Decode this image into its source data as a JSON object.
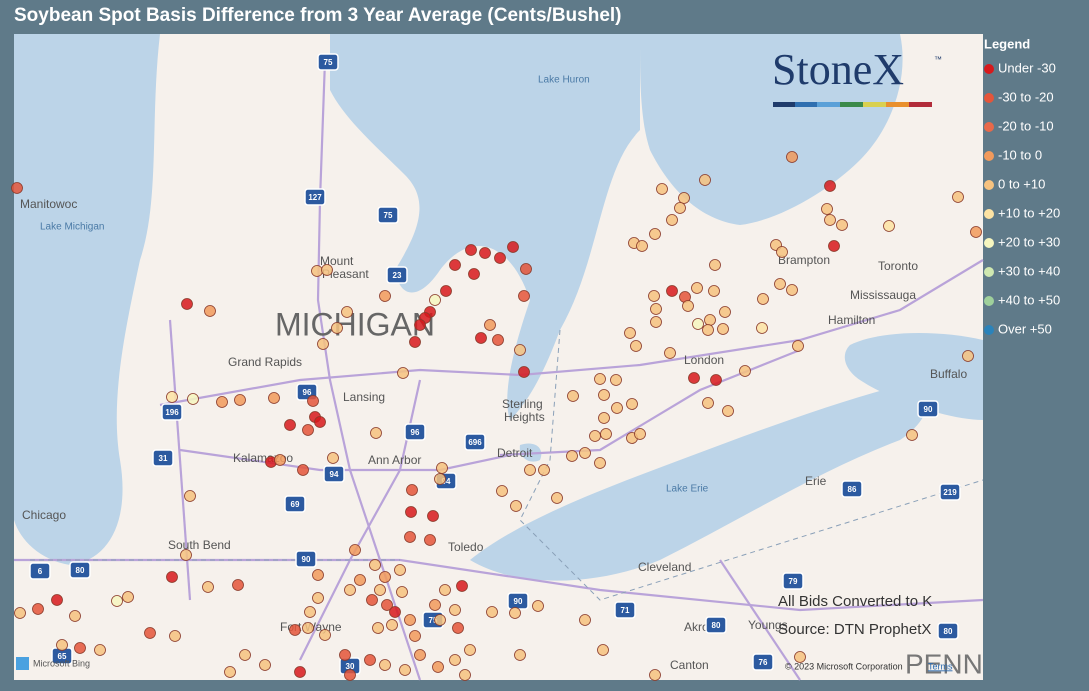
{
  "header": {
    "title": "Soybean Spot Basis Difference from 3 Year Average (Cents/Bushel)"
  },
  "legend": {
    "title": "Legend",
    "items": [
      {
        "label": "Under -30",
        "color": "#d7191c"
      },
      {
        "label": "-30 to -20",
        "color": "#e4553a"
      },
      {
        "label": "-20 to -10",
        "color": "#e8694a"
      },
      {
        "label": "-10 to 0",
        "color": "#f19a5c"
      },
      {
        "label": "0 to +10",
        "color": "#f6c27f"
      },
      {
        "label": "+10 to +20",
        "color": "#fde3a3"
      },
      {
        "label": "+20 to +30",
        "color": "#f6f6bf"
      },
      {
        "label": "+30 to +40",
        "color": "#cfe8b0"
      },
      {
        "label": "+40 to +50",
        "color": "#9fd09b"
      },
      {
        "label": "Over +50",
        "color": "#2b83ba"
      }
    ]
  },
  "logo": {
    "name": "StoneX",
    "mark": "™"
  },
  "map": {
    "places": [
      "Manitowoc",
      "Lake Michigan",
      "Lake Huron",
      "Mount",
      "Pleasant",
      "MICHIGAN",
      "Grand Rapids",
      "Lansing",
      "Sterling",
      "Heights",
      "Detroit",
      "Ann Arbor",
      "Kalamazoo",
      "Chicago",
      "South Bend",
      "Toledo",
      "Fort Wayne",
      "Akron",
      "Cleveland",
      "Canton",
      "Lake Erie",
      "Erie",
      "Buffalo",
      "Hamilton",
      "Mississauga",
      "Toronto",
      "Brampton",
      "London",
      "Youngs",
      "PENN"
    ],
    "shields": [
      "75",
      "127",
      "75",
      "23",
      "196",
      "96",
      "96",
      "69",
      "94",
      "94",
      "696",
      "31",
      "80",
      "90",
      "75",
      "90",
      "71",
      "80",
      "79",
      "86",
      "90",
      "219",
      "80",
      "65",
      "30",
      "76",
      "6"
    ],
    "notes": [
      "All Bids Converted to K",
      "Source: DTN ProphetX"
    ],
    "attribution": {
      "copyright": "© 2023 Microsoft Corporation",
      "terms": "Terms",
      "provider": "Microsoft Bing"
    }
  }
}
